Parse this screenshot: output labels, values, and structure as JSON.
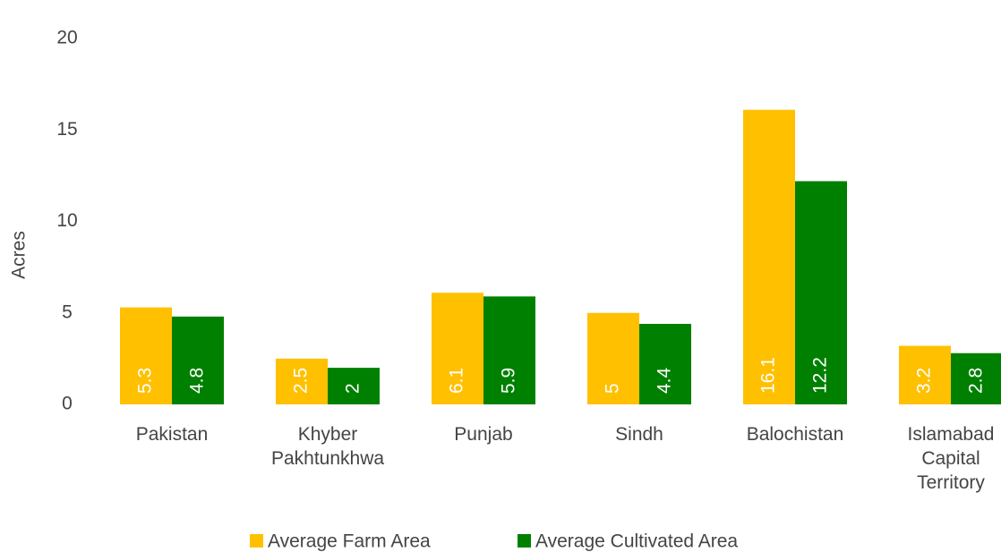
{
  "chart_data": {
    "type": "bar",
    "y_label": "Acres",
    "categories": [
      "Pakistan",
      "Khyber Pakhtunkhwa",
      "Punjab",
      "Sindh",
      "Balochistan",
      "Islamabad Capital Territory"
    ],
    "series": [
      {
        "name": "Average Farm Area",
        "color": "#ffc000",
        "values": [
          5.3,
          2.5,
          6.1,
          5,
          16.1,
          3.2
        ]
      },
      {
        "name": "Average Cultivated Area",
        "color": "#008000",
        "values": [
          4.8,
          2,
          5.9,
          4.4,
          12.2,
          2.8
        ]
      }
    ],
    "ylim": [
      0,
      20
    ],
    "yticks": [
      0,
      5,
      10,
      15,
      20
    ],
    "grid": false,
    "legend": "bottom"
  }
}
